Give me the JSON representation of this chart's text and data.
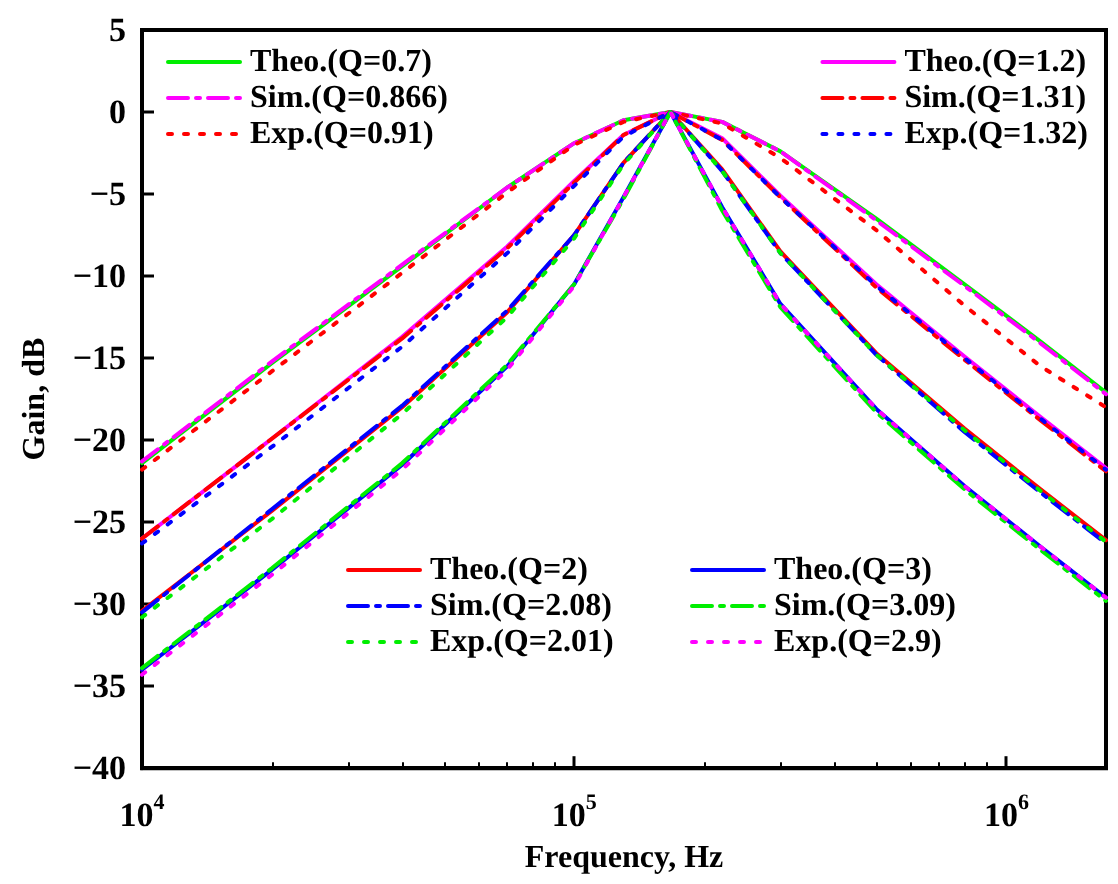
{
  "chart_data": {
    "type": "line",
    "xlabel": "Frequency, Hz",
    "ylabel": "Gain, dB",
    "log": "x",
    "grid": false,
    "legend": "top",
    "marker": "none",
    "xlim": [
      10000,
      1700000
    ],
    "xticks": [
      {
        "value": 10000,
        "label": "10$^{4}$"
      },
      {
        "value": 100000,
        "label": "10$^{5}$"
      },
      {
        "value": 1000000,
        "label": "10$^{6}$"
      }
    ],
    "ylim": [
      -40,
      5
    ],
    "yticks": [
      -40,
      -35,
      -30,
      -25,
      -20,
      -15,
      -10,
      -5,
      0,
      5
    ],
    "x": [
      10000,
      20000,
      40000,
      70000,
      100000,
      130000,
      167000,
      220000,
      300000,
      500000,
      800000,
      1200000,
      1700000
    ],
    "series": [
      {
        "name": "Theo.(Q=0.7)",
        "color": "#00ee00",
        "line_style": "solid",
        "values": [
          -21.4,
          -15.3,
          -9.4,
          -4.6,
          -1.9,
          -0.5,
          0,
          -0.6,
          -2.4,
          -6.5,
          -10.5,
          -14.0,
          -17.1
        ]
      },
      {
        "name": "Sim.(Q=0.866)",
        "color": "#ff00ff",
        "line_style": "dashed",
        "values": [
          -21.3,
          -15.2,
          -9.3,
          -4.6,
          -1.9,
          -0.5,
          0,
          -0.6,
          -2.4,
          -6.6,
          -10.6,
          -14.1,
          -17.2
        ]
      },
      {
        "name": "Exp.(Q=0.91)",
        "color": "#ff0000",
        "line_style": "dotted",
        "values": [
          -21.8,
          -15.8,
          -9.8,
          -4.9,
          -2.0,
          -0.6,
          0,
          -0.7,
          -2.8,
          -7.2,
          -11.8,
          -15.5,
          -18.0
        ]
      },
      {
        "name": "Theo.(Q=1.2)",
        "color": "#ff00ff",
        "line_style": "solid",
        "values": [
          -26.0,
          -19.9,
          -13.7,
          -8.2,
          -4.2,
          -1.4,
          0,
          -1.6,
          -5.1,
          -10.5,
          -14.9,
          -18.6,
          -21.7
        ]
      },
      {
        "name": "Sim.(Q=1.31)",
        "color": "#ff0000",
        "line_style": "dashed",
        "values": [
          -26.0,
          -19.9,
          -13.8,
          -8.3,
          -4.3,
          -1.4,
          0,
          -1.7,
          -5.2,
          -10.7,
          -15.1,
          -18.8,
          -21.9
        ]
      },
      {
        "name": "Exp.(Q=1.32)",
        "color": "#0000ff",
        "line_style": "dotted",
        "values": [
          -26.3,
          -20.4,
          -14.3,
          -8.6,
          -4.5,
          -1.5,
          0,
          -1.7,
          -5.2,
          -10.6,
          -15.0,
          -18.7,
          -21.8
        ]
      },
      {
        "name": "Theo.(Q=2)",
        "color": "#ff0000",
        "line_style": "solid",
        "values": [
          -30.4,
          -24.3,
          -18.0,
          -12.2,
          -7.5,
          -3.1,
          0,
          -3.5,
          -8.5,
          -14.7,
          -19.3,
          -23.0,
          -26.1
        ]
      },
      {
        "name": "Sim.(Q=2.08)",
        "color": "#0000ff",
        "line_style": "dashed",
        "values": [
          -30.5,
          -24.2,
          -17.9,
          -12.1,
          -7.5,
          -3.1,
          0,
          -3.6,
          -8.6,
          -14.8,
          -19.5,
          -23.2,
          -26.3
        ]
      },
      {
        "name": "Exp.(Q=2.01)",
        "color": "#00ee00",
        "line_style": "dotted",
        "values": [
          -30.8,
          -24.8,
          -18.4,
          -12.5,
          -7.7,
          -3.2,
          0,
          -3.6,
          -8.6,
          -14.8,
          -19.4,
          -23.1,
          -26.2
        ]
      },
      {
        "name": "Theo.(Q=3)",
        "color": "#0000ff",
        "line_style": "solid",
        "values": [
          -34.0,
          -27.9,
          -21.5,
          -15.5,
          -10.5,
          -5.2,
          0,
          -5.8,
          -11.7,
          -18.1,
          -22.8,
          -26.5,
          -29.6
        ]
      },
      {
        "name": "Sim.(Q=3.09)",
        "color": "#00ee00",
        "line_style": "dashed",
        "values": [
          -33.9,
          -27.8,
          -21.4,
          -15.4,
          -10.5,
          -5.3,
          0,
          -6.0,
          -11.9,
          -18.3,
          -23.0,
          -26.7,
          -29.8
        ]
      },
      {
        "name": "Exp.(Q=2.9)",
        "color": "#ff00ff",
        "line_style": "dotted",
        "values": [
          -34.3,
          -28.2,
          -21.8,
          -15.7,
          -10.6,
          -5.2,
          0,
          -5.8,
          -11.7,
          -18.1,
          -22.8,
          -26.5,
          -29.6
        ]
      }
    ]
  }
}
